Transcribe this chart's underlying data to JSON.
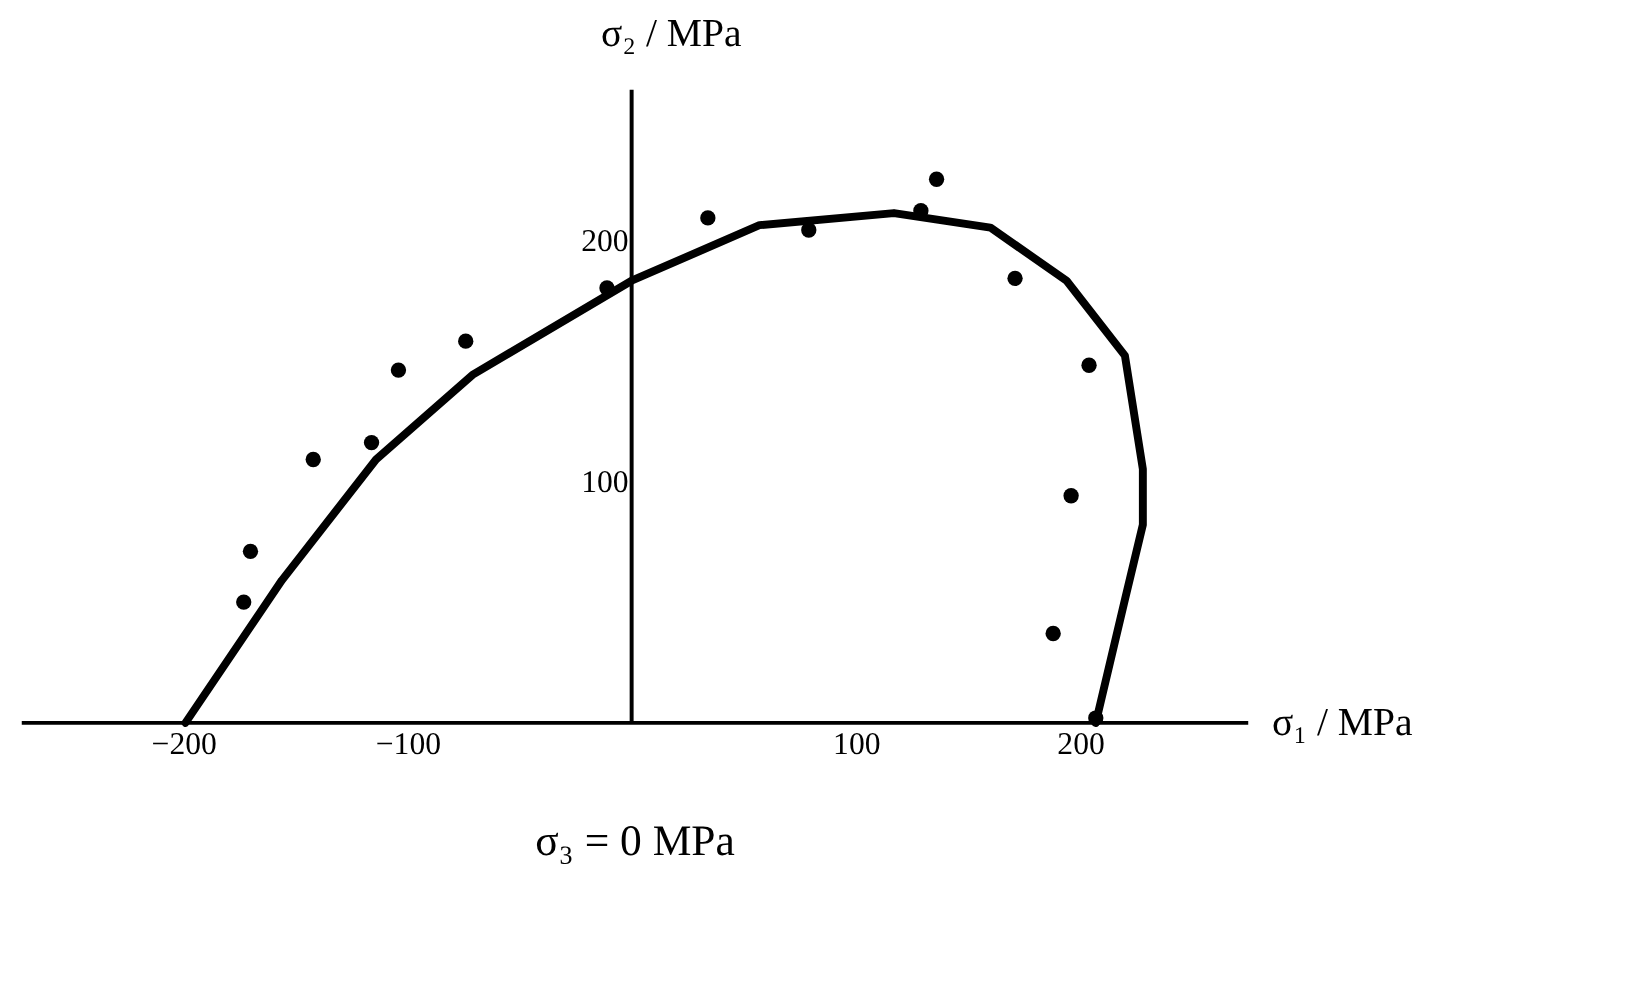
{
  "chart_data": {
    "type": "scatter",
    "xlabel": "σ₁ / MPa",
    "ylabel": "σ₂ / MPa",
    "annotations": [
      "σ₃ = 0 MPa"
    ],
    "xlim": [
      -272,
      275
    ],
    "ylim": [
      0,
      262
    ],
    "xticks": [
      -200,
      -100,
      100,
      200
    ],
    "yticks": [
      100,
      200
    ],
    "grid": false,
    "series": [
      {
        "marker": "circle",
        "color": "#000000",
        "x": [
          -170,
          -173,
          -142,
          -116,
          -104,
          -74,
          -11,
          34,
          79,
          129,
          136,
          171,
          204,
          196,
          188,
          207
        ],
        "values": [
          71,
          50,
          109,
          116,
          146,
          158,
          180,
          209,
          204,
          212,
          225,
          184,
          148,
          94,
          37,
          2
        ]
      },
      {
        "type": "line",
        "marker": "none",
        "line_style": "solid",
        "color": "#000000",
        "x": [
          -199,
          -156,
          -114,
          -71,
          0,
          57,
          117,
          160,
          194,
          220,
          228,
          228,
          220,
          207
        ],
        "values": [
          0,
          59,
          109,
          144,
          183,
          206,
          211,
          205,
          183,
          152,
          105,
          82,
          51,
          0
        ]
      }
    ]
  }
}
